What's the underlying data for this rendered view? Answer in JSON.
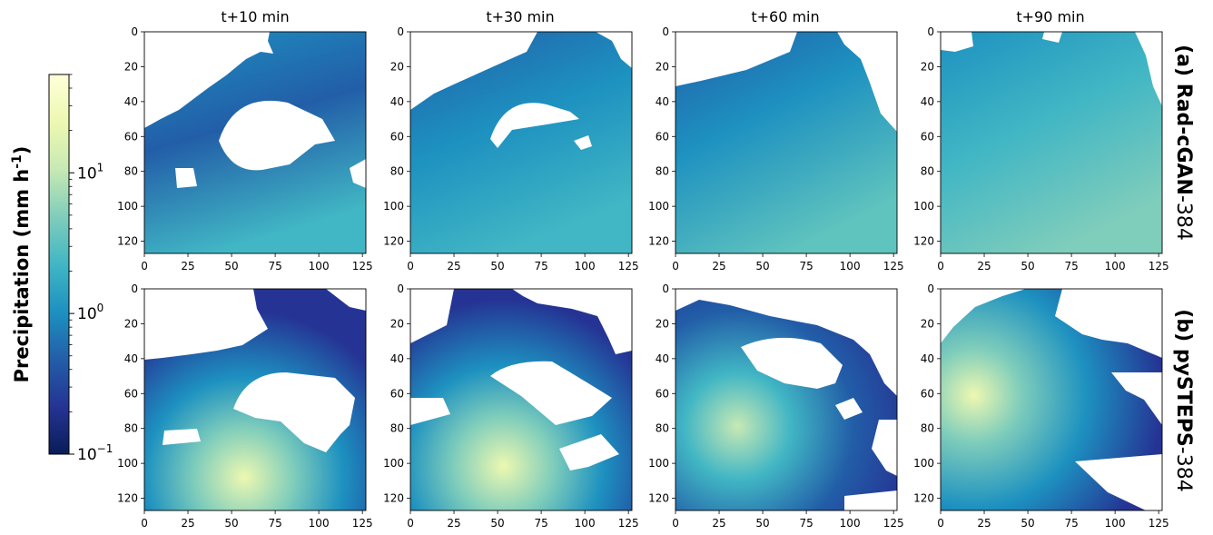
{
  "chart_data": {
    "type": "heatmap",
    "column_titles": [
      "t+10 min",
      "t+30 min",
      "t+60 min",
      "t+90 min"
    ],
    "rows": [
      {
        "label_bold": "(a) Rad-cGAN",
        "label_suffix": "-384"
      },
      {
        "label_bold": "(b) pySTEPS",
        "label_suffix": "-384"
      }
    ],
    "x_ticks": [
      "0",
      "25",
      "50",
      "75",
      "100",
      "125"
    ],
    "y_ticks": [
      "0",
      "20",
      "40",
      "60",
      "80",
      "100",
      "120"
    ],
    "xlim": [
      0,
      127
    ],
    "ylim": [
      127,
      0
    ],
    "colorbar": {
      "label_main": "Precipitation (mm h",
      "label_sup": "-1",
      "label_end": ")",
      "scale": "log",
      "range": [
        0.1,
        50
      ],
      "ticks": [
        {
          "value": 10,
          "base": "10",
          "exp": "1"
        },
        {
          "value": 1,
          "base": "10",
          "exp": "0"
        },
        {
          "value": 0.1,
          "base": "10",
          "exp": "−1"
        }
      ],
      "colormap": "YlGnBu_r",
      "colors": [
        "#081d58",
        "#253494",
        "#225ea8",
        "#1d91c0",
        "#41b6c4",
        "#7fcdbb",
        "#c7e9b4",
        "#edf8b1",
        "#ffffd9"
      ]
    }
  }
}
